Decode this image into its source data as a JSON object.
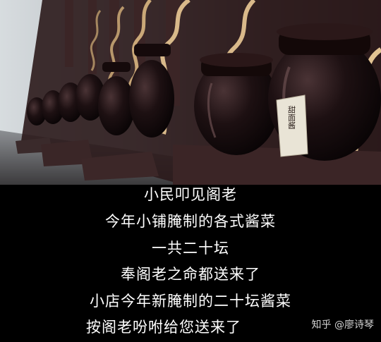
{
  "subtitles": {
    "lines": [
      "小民叩见阁老",
      "今年小铺腌制的各式酱菜",
      "一共二十坛",
      "奉阁老之命都送来了",
      "小店今年新腌制的二十坛酱菜",
      "按阁老吩咐给您送来了"
    ]
  },
  "watermark": {
    "text": "知乎 @廖诗琴"
  },
  "jar_label": {
    "text": "甜面酱"
  },
  "colors": {
    "background": "#000000",
    "subtitle": "#ffffff",
    "jar_glaze": "#1c0f10",
    "wood": "#3a2222",
    "gold_trim": "#d9b98a",
    "mist": "#c9ced2"
  }
}
